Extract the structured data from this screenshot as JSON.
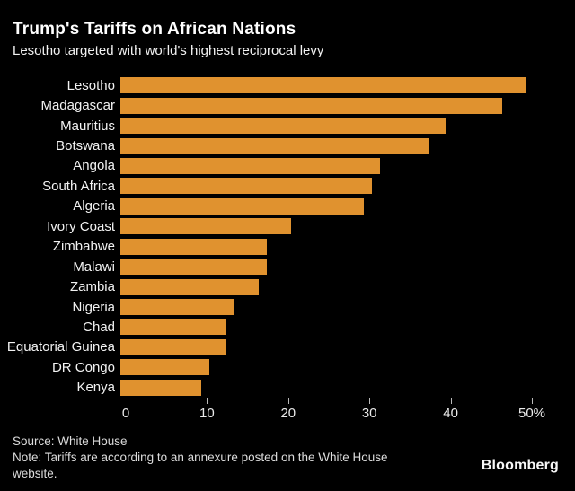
{
  "header": {
    "title": "Trump's Tariffs on African Nations",
    "subtitle": "Lesotho targeted with world's highest reciprocal levy"
  },
  "footer": {
    "source": "Source: White House",
    "note": "Note: Tariffs are according to an annexure posted on the White House website.",
    "brand": "Bloomberg"
  },
  "colors": {
    "background": "#000000",
    "bar": "#E0922F",
    "title_text": "#FFFFFF",
    "label_text": "#F2F2F2",
    "axis_text": "#EAEAEA",
    "tick_mark": "#B9B9B9",
    "footer_text": "#DCDCDC"
  },
  "chart_data": {
    "type": "bar",
    "orientation": "horizontal",
    "title": "Trump's Tariffs on African Nations",
    "subtitle": "Lesotho targeted with world's highest reciprocal levy",
    "categories": [
      "Lesotho",
      "Madagascar",
      "Mauritius",
      "Botswana",
      "Angola",
      "South Africa",
      "Algeria",
      "Ivory Coast",
      "Zimbabwe",
      "Malawi",
      "Zambia",
      "Nigeria",
      "Chad",
      "Equatorial Guinea",
      "DR Congo",
      "Kenya"
    ],
    "values": [
      50,
      47,
      40,
      38,
      32,
      31,
      30,
      21,
      18,
      18,
      17,
      14,
      13,
      13,
      11,
      10
    ],
    "unit": "%",
    "xlabel": "",
    "ylabel": "",
    "xlim": [
      0,
      50
    ],
    "xticks": [
      0,
      10,
      20,
      30,
      40,
      50
    ],
    "xtick_labels": [
      "0",
      "10",
      "20",
      "30",
      "40",
      "50%"
    ],
    "bar_color": "#E0922F",
    "grid": false,
    "legend": "none"
  }
}
